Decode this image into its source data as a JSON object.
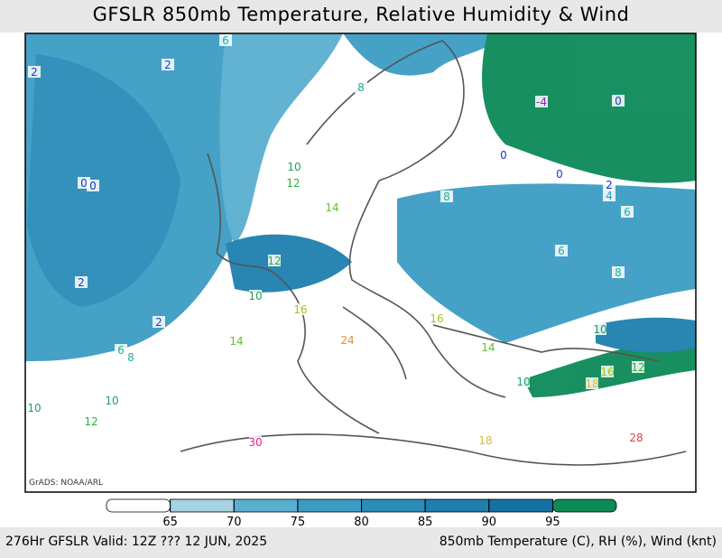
{
  "title": "GFSLR 850mb Temperature, Relative Humidity & Wind",
  "credit": "GrADS: NOAA/ARL",
  "contour_labels": [
    {
      "text": "2",
      "color": "#1a3cc8"
    },
    {
      "text": "2",
      "color": "#1a3cc8"
    },
    {
      "text": "6",
      "color": "#20b0a0"
    },
    {
      "text": "8",
      "color": "#20b0a0"
    },
    {
      "text": "0",
      "color": "#1a3cc8"
    },
    {
      "text": "0",
      "color": "#1a3cc8"
    },
    {
      "text": "2",
      "color": "#1a3cc8"
    },
    {
      "text": "2",
      "color": "#1a3cc8"
    },
    {
      "text": "10",
      "color": "#20a060"
    },
    {
      "text": "12",
      "color": "#30b040"
    },
    {
      "text": "14",
      "color": "#60c030"
    },
    {
      "text": "12",
      "color": "#30b040"
    },
    {
      "text": "10",
      "color": "#20a060"
    },
    {
      "text": "16",
      "color": "#a0c820"
    },
    {
      "text": "14",
      "color": "#60c030"
    },
    {
      "text": "6",
      "color": "#20b0a0"
    },
    {
      "text": "8",
      "color": "#20b0a0"
    },
    {
      "text": "10",
      "color": "#20a060"
    },
    {
      "text": "10",
      "color": "#20a060"
    },
    {
      "text": "12",
      "color": "#30b040"
    },
    {
      "text": "16",
      "color": "#a0c820"
    },
    {
      "text": "14",
      "color": "#60c030"
    },
    {
      "text": "10",
      "color": "#20a060"
    },
    {
      "text": "16",
      "color": "#a0c820"
    },
    {
      "text": "12",
      "color": "#30b040"
    },
    {
      "text": "18",
      "color": "#d0c040"
    },
    {
      "text": "28",
      "color": "#e04040"
    },
    {
      "text": "30",
      "color": "#e02090"
    },
    {
      "text": "24",
      "color": "#e09030"
    },
    {
      "text": "-4",
      "color": "#9020c0"
    },
    {
      "text": "0",
      "color": "#1a3cc8"
    },
    {
      "text": "0",
      "color": "#1a3cc8"
    },
    {
      "text": "2",
      "color": "#1a3cc8"
    },
    {
      "text": "4",
      "color": "#20a0c0"
    },
    {
      "text": "6",
      "color": "#20b0a0"
    },
    {
      "text": "6",
      "color": "#20b0a0"
    },
    {
      "text": "8",
      "color": "#20b0a0"
    },
    {
      "text": "10",
      "color": "#20a060"
    },
    {
      "text": "0",
      "color": "#1a3cc8"
    },
    {
      "text": "8",
      "color": "#20b0a0"
    },
    {
      "text": "18",
      "color": "#d0c040"
    }
  ],
  "colorbar": {
    "ticks": [
      65,
      70,
      75,
      80,
      85,
      90,
      95
    ],
    "colors": [
      "#ffffff",
      "#a6d2e4",
      "#5aaed0",
      "#3c9cc4",
      "#2a8cb8",
      "#1e7fae",
      "#1472a2",
      "#0c8a58"
    ]
  },
  "footer": {
    "left": "276Hr GFSLR Valid: 12Z ??? 12 JUN, 2025",
    "right": "850mb Temperature (C), RH (%), Wind (knt)"
  }
}
